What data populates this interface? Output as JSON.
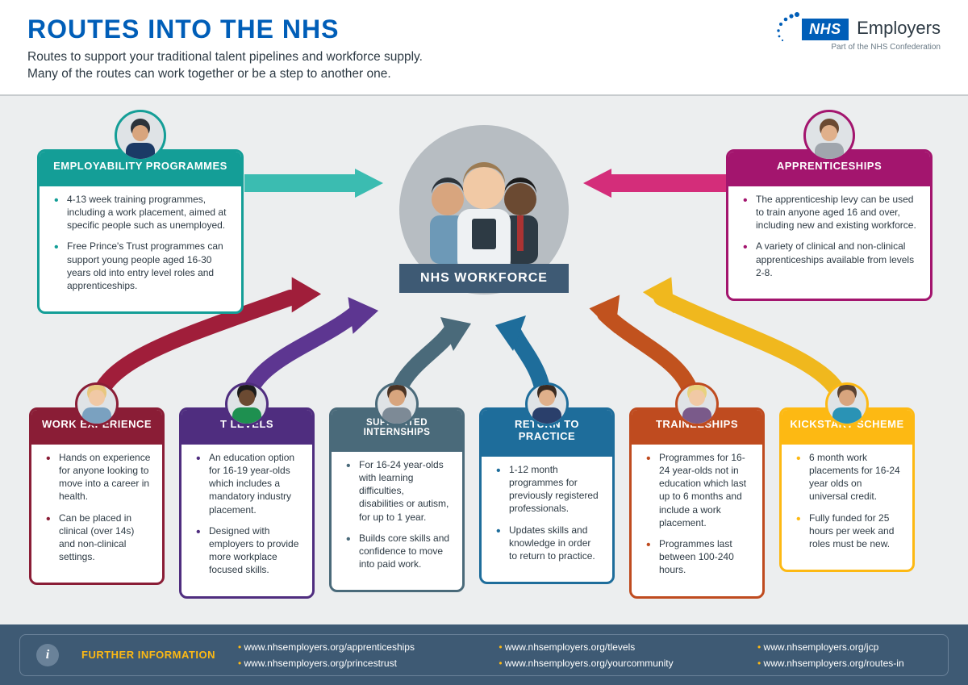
{
  "header": {
    "title": "ROUTES INTO THE NHS",
    "subtitle": "Routes to support your traditional talent pipelines and workforce supply.\nMany of the routes can work together or be a step to another one."
  },
  "logo": {
    "nhs": "NHS",
    "employers": "Employers",
    "confed": "Part of the NHS Confederation",
    "dot_color": "#005eb8"
  },
  "center": {
    "label": "NHS WORKFORCE",
    "circle_bg": "#b7bdc2",
    "label_bg": "#3e5a74"
  },
  "cards": {
    "employability": {
      "title": "EMPLOYABILITY PROGRAMMES",
      "color": "#149e97",
      "bullet_color": "#149e97",
      "bullets": [
        "4-13 week training programmes, including a work placement, aimed at specific people such as unemployed.",
        "Free Prince's Trust programmes can support young people aged 16-30 years old into entry level roles and apprenticeships."
      ],
      "avatar": {
        "skin": "#d8a57e",
        "hair": "#2c333a",
        "shirt": "#1b3a66"
      }
    },
    "apprenticeships": {
      "title": "APPRENTICESHIPS",
      "color": "#a3156e",
      "bullet_color": "#c31a7c",
      "bullets": [
        "The apprenticeship levy can be used to train anyone aged 16 and over, including new and existing workforce.",
        "A variety of clinical and non-clinical apprenticeships available from levels 2-8."
      ],
      "avatar": {
        "skin": "#e0b08b",
        "hair": "#6b4a32",
        "shirt": "#a0a6ad"
      }
    },
    "work_experience": {
      "title": "WORK EXPERIENCE",
      "color": "#8a1d36",
      "bullet_color": "#a01e3a",
      "bullets": [
        "Hands on experience for anyone looking to move into a career in health.",
        "Can be placed in clinical (over 14s) and non-clinical settings."
      ],
      "avatar": {
        "skin": "#f1c9a5",
        "hair": "#e8c77e",
        "shirt": "#7aa1c0"
      }
    },
    "t_levels": {
      "title": "T LEVELS",
      "color": "#4f2d7f",
      "bullet_color": "#5d3691",
      "bullets": [
        "An education option for 16-19 year-olds which includes a mandatory industry placement.",
        "Designed with employers to provide more workplace focused skills."
      ],
      "avatar": {
        "skin": "#6b4a32",
        "hair": "#1b1b1b",
        "shirt": "#1e9050"
      }
    },
    "supported_internships": {
      "title": "SUPPORTED INTERNSHIPS",
      "color": "#4a6a7a",
      "bullet_color": "#4a6a7a",
      "bullets": [
        "For 16-24 year-olds with learning difficulties, disabilities or autism, for up to 1 year.",
        "Builds core skills and confidence to move into paid work."
      ],
      "avatar": {
        "skin": "#d8a57e",
        "hair": "#4a3324",
        "shirt": "#7d8a96"
      }
    },
    "return_to_practice": {
      "title": "RETURN TO PRACTICE",
      "color": "#1e6d9b",
      "bullet_color": "#1e6d9b",
      "bullets": [
        "1-12 month programmes for previously registered professionals.",
        "Updates skills and knowledge in order to return to practice."
      ],
      "avatar": {
        "skin": "#e0b08b",
        "hair": "#3a2a20",
        "shirt": "#2a3f6b"
      }
    },
    "traineeships": {
      "title": "TRAINEESHIPS",
      "color": "#bf4b1f",
      "bullet_color": "#bf4b1f",
      "bullets": [
        "Programmes for 16-24 year-olds not in education which last up to 6 months and include a work placement.",
        "Programmes last between 100-240 hours."
      ],
      "avatar": {
        "skin": "#f1c9a5",
        "hair": "#e8d27e",
        "shirt": "#7a5a8a"
      }
    },
    "kickstart": {
      "title": "KICKSTART SCHEME",
      "color": "#fdb913",
      "bullet_color": "#f0a500",
      "bullets": [
        "6 month work placements for 16-24 year olds on universal credit.",
        "Fully funded for 25 hours per week and roles must be new."
      ],
      "avatar": {
        "skin": "#d8a57e",
        "hair": "#5a4130",
        "shirt": "#2a93b5"
      }
    }
  },
  "arrows": {
    "employability_to_center": "#3bbcb1",
    "apprenticeships_to_center": "#d42d7a",
    "workexp_path": "#a01e3a",
    "tlevels_path": "#5d3691",
    "supported_path": "#4a6a7a",
    "return_path": "#1e6d9b",
    "traineeships_path": "#c1521e",
    "kickstart_path": "#f0b81e"
  },
  "footer": {
    "label": "FURTHER INFORMATION",
    "links": [
      "www.nhsemployers.org/apprenticeships",
      "www.nhsemployers.org/tlevels",
      "www.nhsemployers.org/jcp",
      "www.nhsemployers.org/princestrust",
      "www.nhsemployers.org/yourcommunity",
      "www.nhsemployers.org/routes-in"
    ],
    "bg": "#3e5a74",
    "accent": "#fdb913"
  }
}
